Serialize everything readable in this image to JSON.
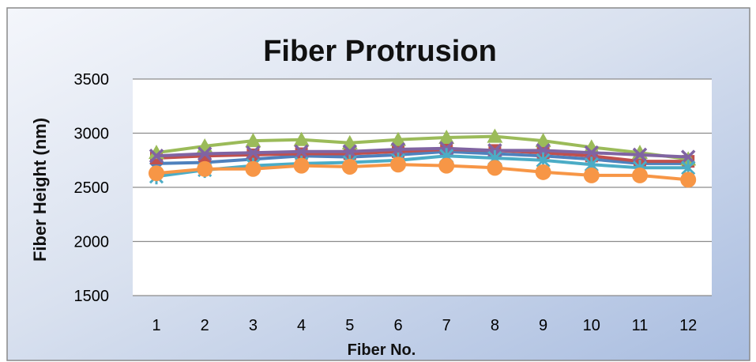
{
  "chart_data": {
    "type": "line",
    "title": "Fiber Protrusion",
    "xlabel": "Fiber No.",
    "ylabel": "Fiber  Height (nm)",
    "x": [
      1,
      2,
      3,
      4,
      5,
      6,
      7,
      8,
      9,
      10,
      11,
      12
    ],
    "ylim": [
      1500,
      3500
    ],
    "yticks": [
      1500,
      2000,
      2500,
      3000,
      3500
    ],
    "grid": true,
    "legend": "none",
    "series": [
      {
        "color": "#4f81bd",
        "marker": "diamond",
        "values": [
          2720,
          2730,
          2760,
          2790,
          2780,
          2800,
          2830,
          2810,
          2790,
          2760,
          2720,
          2720
        ]
      },
      {
        "color": "#c0504d",
        "marker": "square",
        "values": [
          2770,
          2790,
          2800,
          2810,
          2810,
          2830,
          2850,
          2840,
          2820,
          2790,
          2740,
          2740
        ]
      },
      {
        "color": "#9bbb59",
        "marker": "triangle",
        "values": [
          2820,
          2880,
          2930,
          2940,
          2910,
          2940,
          2960,
          2970,
          2930,
          2870,
          2820,
          2760
        ]
      },
      {
        "color": "#8064a2",
        "marker": "x",
        "values": [
          2790,
          2810,
          2820,
          2830,
          2830,
          2850,
          2860,
          2840,
          2840,
          2820,
          2800,
          2780
        ]
      },
      {
        "color": "#4bacc6",
        "marker": "star",
        "values": [
          2600,
          2660,
          2700,
          2720,
          2730,
          2750,
          2790,
          2770,
          2750,
          2710,
          2680,
          2680
        ]
      },
      {
        "color": "#f79646",
        "marker": "circle",
        "values": [
          2630,
          2670,
          2670,
          2700,
          2690,
          2710,
          2700,
          2680,
          2640,
          2610,
          2610,
          2570
        ]
      }
    ]
  }
}
